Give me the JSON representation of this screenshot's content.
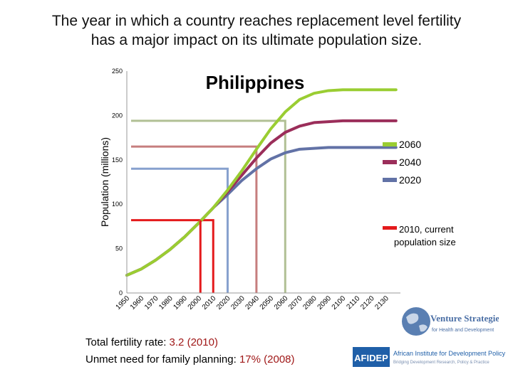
{
  "title": {
    "line1": "The year in which a country reaches replacement level fertility",
    "line2": "has a major impact on its ultimate population size."
  },
  "chart_data": {
    "type": "line",
    "title": "Philippines",
    "ylabel": "Population (millions)",
    "xlabel": "",
    "ylim": [
      0,
      250
    ],
    "yticks": [
      0,
      50,
      100,
      150,
      200,
      250
    ],
    "x_tick_labels": [
      "1950",
      "1960",
      "1970",
      "1980",
      "1990",
      "2000",
      "2010",
      "2020",
      "2030",
      "2040",
      "2050",
      "2060",
      "2070",
      "2080",
      "2090",
      "2100",
      "2110",
      "2120",
      "2130"
    ],
    "x": [
      1950,
      1960,
      1970,
      1980,
      1990,
      2000,
      2010,
      2020,
      2030,
      2040,
      2050,
      2060,
      2070,
      2080,
      2090,
      2100,
      2110,
      2120,
      2130
    ],
    "series": [
      {
        "name": "2060",
        "color": "#9acd32",
        "replacement_year": 2060,
        "ultimate_population": 229,
        "values": [
          20,
          27,
          37,
          49,
          63,
          79,
          96,
          116,
          138,
          162,
          185,
          204,
          218,
          225,
          228,
          229,
          229,
          229,
          229
        ]
      },
      {
        "name": "2040",
        "color": "#9b2e5a",
        "replacement_year": 2040,
        "ultimate_population": 194,
        "values": [
          20,
          27,
          37,
          49,
          63,
          79,
          96,
          114,
          133,
          152,
          169,
          181,
          188,
          192,
          193,
          194,
          194,
          194,
          194
        ]
      },
      {
        "name": "2020",
        "color": "#6272a6",
        "replacement_year": 2020,
        "ultimate_population": 164,
        "values": [
          20,
          27,
          37,
          49,
          63,
          79,
          96,
          111,
          127,
          140,
          151,
          158,
          162,
          163,
          164,
          164,
          164,
          164,
          164
        ]
      }
    ],
    "reference_boxes": [
      {
        "year": 2010,
        "population": 82,
        "color": "#e41a1c",
        "opacity": 1.0
      },
      {
        "year": 2020,
        "population": 140,
        "color": "#7a97c9",
        "opacity": 0.9
      },
      {
        "year": 2040,
        "population": 165,
        "color": "#c07070",
        "opacity": 0.9
      },
      {
        "year": 2060,
        "population": 194,
        "color": "#a9b98a",
        "opacity": 0.9
      }
    ],
    "current_marker": {
      "name": "2010, current population size",
      "color": "#e41a1c",
      "year": 2010,
      "population": 82
    },
    "legend": {
      "placement": "right"
    },
    "grid": false
  },
  "legend_labels": {
    "s2060": "2060",
    "s2040": "2040",
    "s2020": "2020",
    "current_line1": "2010, current",
    "current_line2": "population size"
  },
  "footer": {
    "tfr_label": "Total fertility rate:",
    "tfr_value": "3.2",
    "tfr_year": "(2010)",
    "unmet_label": "Unmet need for family planning:",
    "unmet_value": "17%",
    "unmet_year": "(2008)"
  },
  "logos": {
    "vs_line1": "Venture Strategies",
    "vs_line2": "for Health and Development",
    "afidep_mark": "AFIDEP",
    "afidep_name": "African Institute for Development Policy",
    "afidep_tagline": "Bridging Development Research, Policy & Practice"
  }
}
